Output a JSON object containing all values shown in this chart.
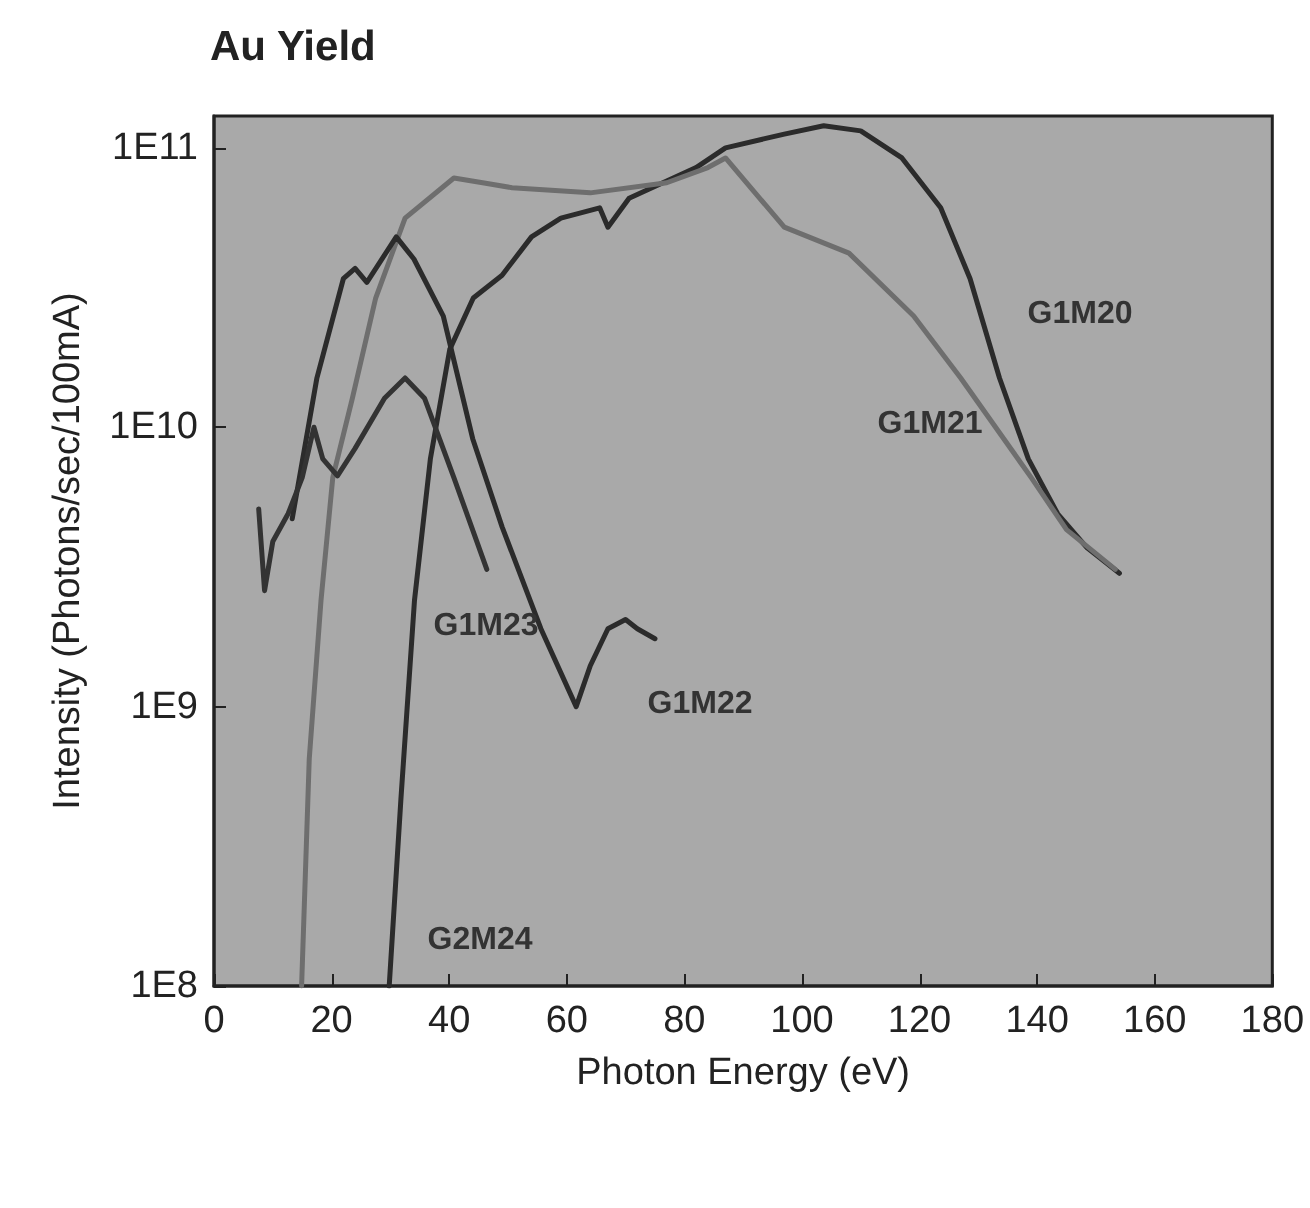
{
  "chart_data": {
    "type": "line",
    "title": "Au Yield",
    "xlabel": "Photon Energy (eV)",
    "ylabel": "Intensity (Photons/sec/100mA)",
    "log": "y",
    "grid": false,
    "marker": "none",
    "line_style": "solid",
    "xlim": [
      0,
      180
    ],
    "xticks": [
      0,
      20,
      40,
      60,
      80,
      100,
      120,
      140,
      160,
      180
    ],
    "ylim": [
      100000000,
      130000000000
    ],
    "yticks": [
      {
        "value": 100000000,
        "label": "1E8"
      },
      {
        "value": 1000000000,
        "label": "1E9"
      },
      {
        "value": 10000000000,
        "label": "1E10"
      },
      {
        "value": 100000000000,
        "label": "1E11"
      }
    ],
    "series": [
      {
        "color": "#2b2b2b",
        "x": [
          29.8,
          31.8,
          34.1,
          36.8,
          40.1,
          44.1,
          49,
          54,
          59,
          65.6,
          67,
          70.6,
          82,
          87,
          97,
          103.7,
          110,
          117,
          123.6,
          128.6,
          133.6,
          138.5,
          143.5,
          148.5,
          154
        ],
        "values": [
          100000000,
          470000000,
          2400000000,
          7700000000,
          19000000000,
          29000000000,
          35000000000,
          48000000000,
          56000000000,
          61000000000,
          52000000000,
          66000000000,
          85000000000,
          100000000000,
          112000000000,
          120000000000,
          115000000000,
          92000000000,
          61000000000,
          34000000000,
          15000000000,
          7700000000,
          4900000000,
          3700000000,
          3000000000
        ]
      },
      {
        "color": "#6e6e6e",
        "x": [
          14.9,
          16.2,
          18.2,
          20.2,
          23.5,
          27.5,
          32.5,
          40.8,
          45.7,
          50.7,
          64,
          77,
          84,
          87,
          97,
          108,
          119,
          127,
          139,
          145,
          153.3
        ],
        "values": [
          100000000,
          650000000,
          2400000000,
          6600000000,
          12600000000,
          29000000000,
          56000000000,
          78000000000,
          75000000000,
          72000000000,
          69000000000,
          75000000000,
          85000000000,
          92000000000,
          52000000000,
          42000000000,
          25000000000,
          15000000000,
          6600000000,
          4300000000,
          3100000000
        ]
      },
      {
        "color": "#2b2b2b",
        "x": [
          13.3,
          17.5,
          22,
          24,
          26,
          31,
          34,
          39,
          44,
          49,
          55.6,
          61.6,
          64,
          67,
          70,
          72,
          75
        ],
        "values": [
          4700000000,
          15000000000,
          34000000000,
          37000000000,
          33000000000,
          48000000000,
          40000000000,
          25000000000,
          9100000000,
          4400000000,
          1900000000,
          1000000000,
          1400000000,
          1900000000,
          2050000000,
          1900000000,
          1750000000
        ]
      },
      {
        "color": "#333333",
        "x": [
          7.6,
          8.6,
          10,
          12.6,
          15,
          17,
          18.5,
          21,
          24,
          29,
          32.5,
          35.8,
          40.8,
          46.4
        ],
        "values": [
          5100000000,
          2600000000,
          3900000000,
          4900000000,
          6600000000,
          10000000000,
          7700000000,
          6700000000,
          8400000000,
          12700000000,
          15000000000,
          12700000000,
          6600000000,
          3100000000
        ]
      }
    ],
    "annotations": [
      "G1M20",
      "G1M21",
      "G1M23",
      "G1M22",
      "G2M24"
    ]
  }
}
